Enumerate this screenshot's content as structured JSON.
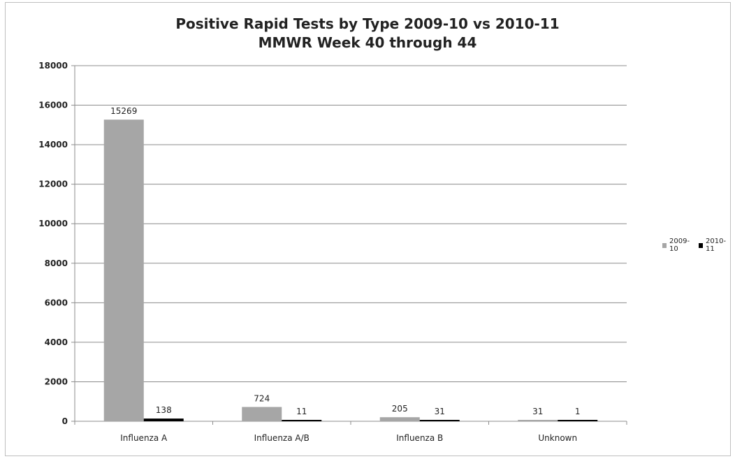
{
  "chart_data": {
    "type": "bar",
    "title": "Positive Rapid Tests by Type 2009-10 vs 2010-11",
    "subtitle": "MMWR Week 40 through 44",
    "categories": [
      "Influenza A",
      "Influenza A/B",
      "Influenza B",
      "Unknown"
    ],
    "series": [
      {
        "name": "2009-10",
        "values": [
          15269,
          724,
          205,
          31
        ],
        "color": "#a6a6a6"
      },
      {
        "name": "2010-11",
        "values": [
          138,
          11,
          31,
          1
        ],
        "color": "#000000"
      }
    ],
    "ylim": [
      0,
      18000
    ],
    "yticks": [
      "0",
      "2000",
      "4000",
      "6000",
      "8000",
      "10000",
      "12000",
      "14000",
      "16000",
      "18000"
    ],
    "grid": true,
    "legend": "right"
  }
}
